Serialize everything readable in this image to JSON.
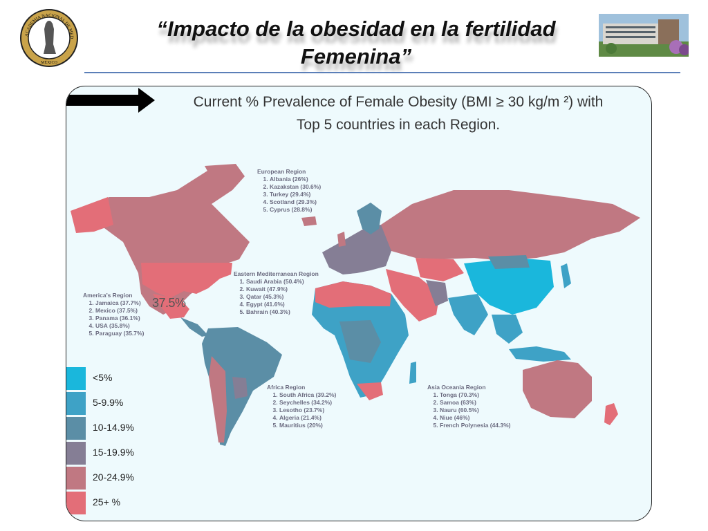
{
  "slide": {
    "title_line1": "“Impacto de la obesidad en la fertilidad",
    "title_line2": "Femenina”"
  },
  "logo": {
    "ring_text": "ACADEMIA NACIONAL DE MEDICINA",
    "bottom_text": "MÉXICO"
  },
  "map": {
    "title_line1": "Current % Prevalence of Female Obesity (BMI ≥ 30 kg/m ²) with",
    "title_line2": "Top 5 countries in each Region.",
    "callout": "37.5%",
    "regions": [
      {
        "name": "European Region",
        "items": [
          "Albania (26%)",
          "Kazakstan (30.6%)",
          "Turkey (29.4%)",
          "Scotland (29.3%)",
          "Cyprus (28.8%)"
        ]
      },
      {
        "name": "Eastern Mediterranean Region",
        "items": [
          "Saudi Arabia (50.4%)",
          "Kuwait (47.9%)",
          "Qatar (45.3%)",
          "Egypt (41.6%)",
          "Bahrain (40.3%)"
        ]
      },
      {
        "name": "America’s Region",
        "items": [
          "Jamaica (37.7%)",
          "Mexico (37.5%)",
          "Panama (36.1%)",
          "USA (35.8%)",
          "Paraguay (35.7%)"
        ]
      },
      {
        "name": "Africa Region",
        "items": [
          "South Africa (39.2%)",
          "Seychelles (34.2%)",
          "Lesotho (23.7%)",
          "Algeria (21.4%)",
          "Mauritius (20%)"
        ]
      },
      {
        "name": "Asia Oceania Region",
        "items": [
          "Tonga (70.3%)",
          "Samoa (63%)",
          "Nauru (60.5%)",
          "Niue (46%)",
          "French Polynesia (44.3%)"
        ]
      }
    ],
    "legend": [
      {
        "label": "<5%",
        "color": "#1ab7dc"
      },
      {
        "label": "5-9.9%",
        "color": "#3ea2c6"
      },
      {
        "label": "10-14.9%",
        "color": "#5b8ea6"
      },
      {
        "label": "15-19.9%",
        "color": "#857e95"
      },
      {
        "label": "20-24.9%",
        "color": "#c07882"
      },
      {
        "label": "25+ %",
        "color": "#e36e78"
      }
    ]
  }
}
